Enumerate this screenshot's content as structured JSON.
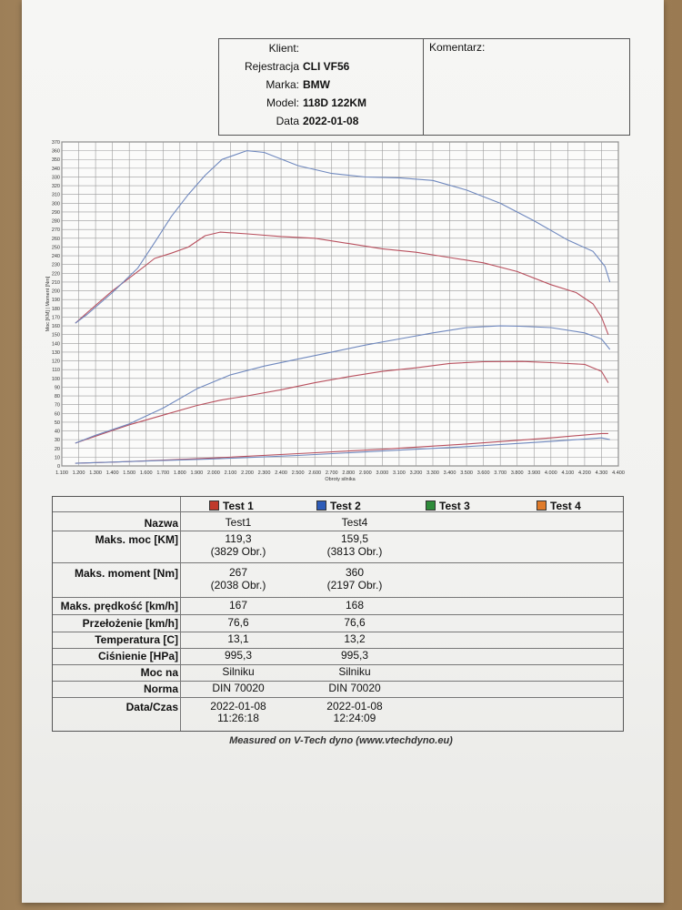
{
  "header": {
    "fields": [
      {
        "label": "Klient:",
        "value": ""
      },
      {
        "label": "Rejestracja",
        "value": "CLI VF56"
      },
      {
        "label": "Marka:",
        "value": "BMW"
      },
      {
        "label": "Model:",
        "value": "118D 122KM"
      },
      {
        "label": "Data",
        "value": "2022-01-08"
      }
    ],
    "comment_label": "Komentarz:"
  },
  "chart_data": {
    "type": "line",
    "ylabel": "Moc [KM] | Moment [Nm]",
    "xlabel": "Obroty silnika",
    "xlim": [
      1100,
      4400
    ],
    "ylim": [
      0,
      370
    ],
    "x_ticks": [
      "1.100",
      "1.200",
      "1.300",
      "1.400",
      "1.500",
      "1.600",
      "1.700",
      "1.800",
      "1.900",
      "2.000",
      "2.100",
      "2.200",
      "2.300",
      "2.400",
      "2.500",
      "2.600",
      "2.700",
      "2.800",
      "2.900",
      "3.000",
      "3.100",
      "3.200",
      "3.300",
      "3.400",
      "3.500",
      "3.600",
      "3.700",
      "3.800",
      "3.900",
      "4.000",
      "4.100",
      "4.200",
      "4.300",
      "4.400"
    ],
    "y_ticks": [
      "0",
      "10",
      "20",
      "30",
      "40",
      "50",
      "60",
      "70",
      "80",
      "90",
      "100",
      "110",
      "120",
      "130",
      "140",
      "150",
      "160",
      "170",
      "180",
      "190",
      "200",
      "210",
      "220",
      "230",
      "240",
      "250",
      "260",
      "270",
      "280",
      "290",
      "300",
      "310",
      "320",
      "330",
      "340",
      "350",
      "360",
      "370"
    ],
    "grid": true,
    "series": [
      {
        "name": "Test 1",
        "kind": "torque",
        "color": "#b8505e",
        "x": [
          1180,
          1250,
          1400,
          1550,
          1650,
          1750,
          1850,
          1950,
          2038,
          2200,
          2400,
          2600,
          2800,
          3000,
          3200,
          3400,
          3600,
          3800,
          4000,
          4150,
          4250,
          4300,
          4340
        ],
        "y": [
          163,
          175,
          200,
          222,
          237,
          243,
          250,
          263,
          267,
          265,
          262,
          260,
          254,
          248,
          244,
          238,
          232,
          222,
          207,
          198,
          185,
          170,
          150
        ]
      },
      {
        "name": "Test 2",
        "kind": "torque",
        "color": "#6f88be",
        "x": [
          1180,
          1250,
          1400,
          1550,
          1650,
          1750,
          1850,
          1950,
          2050,
          2197,
          2300,
          2500,
          2700,
          2900,
          3100,
          3300,
          3500,
          3700,
          3900,
          4100,
          4250,
          4320,
          4350
        ],
        "y": [
          163,
          173,
          198,
          226,
          255,
          285,
          310,
          332,
          350,
          360,
          358,
          343,
          334,
          330,
          329,
          326,
          315,
          300,
          280,
          258,
          245,
          228,
          210
        ]
      },
      {
        "name": "Test 1",
        "kind": "power",
        "color": "#b8505e",
        "x": [
          1180,
          1300,
          1500,
          1700,
          1900,
          2038,
          2200,
          2400,
          2600,
          2800,
          3000,
          3200,
          3400,
          3600,
          3829,
          4000,
          4200,
          4300,
          4340
        ],
        "y": [
          26,
          34,
          47,
          58,
          69,
          75,
          80,
          87,
          95,
          102,
          108,
          112,
          117,
          119,
          119.3,
          118,
          116,
          108,
          95
        ]
      },
      {
        "name": "Test 2",
        "kind": "power",
        "color": "#6f88be",
        "x": [
          1180,
          1300,
          1500,
          1700,
          1900,
          2100,
          2300,
          2500,
          2700,
          2900,
          3100,
          3300,
          3500,
          3700,
          3813,
          4000,
          4200,
          4300,
          4350
        ],
        "y": [
          26,
          35,
          48,
          66,
          88,
          104,
          114,
          122,
          130,
          138,
          145,
          152,
          158,
          160,
          159.5,
          158,
          152,
          145,
          133
        ]
      },
      {
        "name": "Test 1",
        "kind": "loss",
        "color": "#b8505e",
        "x": [
          1180,
          1500,
          2000,
          2500,
          3000,
          3500,
          4000,
          4300,
          4340
        ],
        "y": [
          3,
          5,
          9,
          14,
          19,
          25,
          32,
          37,
          37
        ]
      },
      {
        "name": "Test 2",
        "kind": "loss",
        "color": "#6f88be",
        "x": [
          1180,
          1500,
          2000,
          2500,
          3000,
          3500,
          4000,
          4300,
          4350
        ],
        "y": [
          3,
          5,
          8,
          12,
          17,
          22,
          28,
          32,
          30
        ]
      }
    ]
  },
  "legend": [
    {
      "label": "Test 1",
      "color": "#c0392b"
    },
    {
      "label": "Test 2",
      "color": "#2e5cb8"
    },
    {
      "label": "Test 3",
      "color": "#2e8b3a"
    },
    {
      "label": "Test 4",
      "color": "#e07b2a"
    }
  ],
  "results": {
    "rows": [
      {
        "label": "Nazwa",
        "t1": [
          "Test1"
        ],
        "t2": [
          "Test4"
        ]
      },
      {
        "label": "Maks. moc [KM]",
        "t1": [
          "119,3",
          "(3829 Obr.)"
        ],
        "t2": [
          "159,5",
          "(3813 Obr.)"
        ]
      },
      {
        "label": "Maks. moment [Nm]",
        "t1": [
          "267",
          "(2038 Obr.)"
        ],
        "t2": [
          "360",
          "(2197 Obr.)"
        ]
      },
      {
        "label": "Maks. prędkość [km/h]",
        "t1": [
          "167"
        ],
        "t2": [
          "168"
        ]
      },
      {
        "label": "Przełożenie [km/h]",
        "t1": [
          "76,6"
        ],
        "t2": [
          "76,6"
        ]
      },
      {
        "label": "Temperatura [C]",
        "t1": [
          "13,1"
        ],
        "t2": [
          "13,2"
        ]
      },
      {
        "label": "Ciśnienie [HPa]",
        "t1": [
          "995,3"
        ],
        "t2": [
          "995,3"
        ]
      },
      {
        "label": "Moc na",
        "t1": [
          "Silniku"
        ],
        "t2": [
          "Silniku"
        ]
      },
      {
        "label": "Norma",
        "t1": [
          "DIN 70020"
        ],
        "t2": [
          "DIN 70020"
        ]
      },
      {
        "label": "Data/Czas",
        "t1": [
          "2022-01-08",
          "11:26:18"
        ],
        "t2": [
          "2022-01-08",
          "12:24:09"
        ]
      }
    ]
  },
  "footer": "Measured on V-Tech dyno (www.vtechdyno.eu)"
}
